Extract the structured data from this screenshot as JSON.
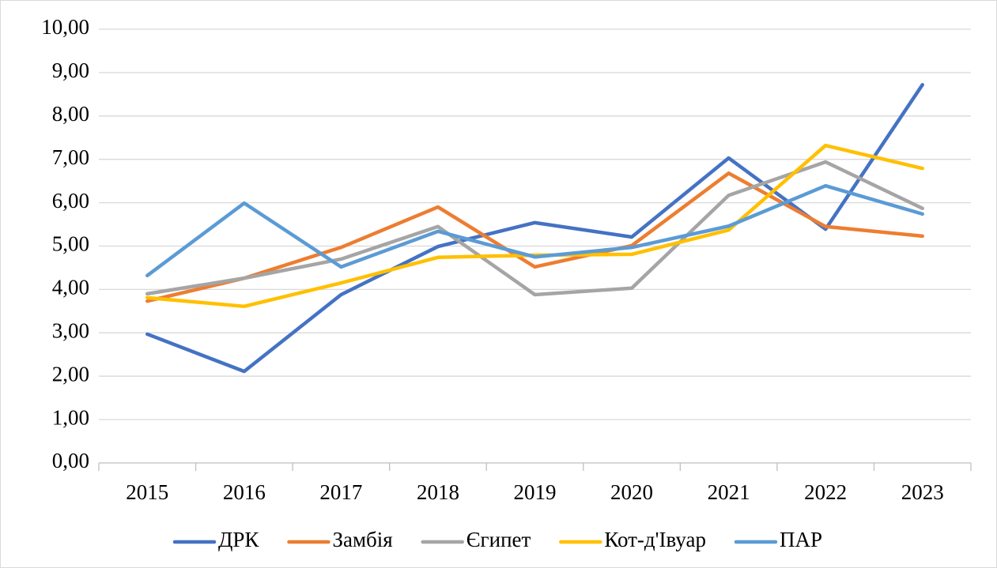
{
  "chart_data": {
    "type": "line",
    "categories": [
      "2015",
      "2016",
      "2017",
      "2018",
      "2019",
      "2020",
      "2021",
      "2022",
      "2023"
    ],
    "series": [
      {
        "name": "ДРК",
        "color": "#4472c4",
        "values": [
          2.97,
          2.11,
          3.88,
          4.99,
          5.54,
          5.21,
          7.03,
          5.39,
          8.72
        ]
      },
      {
        "name": "Замбія",
        "color": "#ed7d31",
        "values": [
          3.73,
          4.26,
          4.97,
          5.9,
          4.52,
          5.01,
          6.68,
          5.45,
          5.23
        ]
      },
      {
        "name": "Єгипет",
        "color": "#a5a5a5",
        "values": [
          3.9,
          4.26,
          4.7,
          5.45,
          3.88,
          4.03,
          6.17,
          6.94,
          5.87
        ]
      },
      {
        "name": "Кот-д'Івуар",
        "color": "#ffc000",
        "values": [
          3.81,
          3.61,
          4.15,
          4.74,
          4.79,
          4.81,
          5.37,
          7.32,
          6.79
        ]
      },
      {
        "name": "ПАР",
        "color": "#5b9bd5",
        "values": [
          4.32,
          5.99,
          4.52,
          5.34,
          4.75,
          4.97,
          5.46,
          6.39,
          5.74
        ]
      }
    ],
    "ylim": [
      0,
      10
    ],
    "yticks": [
      {
        "value": 0,
        "label": "0,00"
      },
      {
        "value": 1,
        "label": "1,00"
      },
      {
        "value": 2,
        "label": "2,00"
      },
      {
        "value": 3,
        "label": "3,00"
      },
      {
        "value": 4,
        "label": "4,00"
      },
      {
        "value": 5,
        "label": "5,00"
      },
      {
        "value": 6,
        "label": "6,00"
      },
      {
        "value": 7,
        "label": "7,00"
      },
      {
        "value": 8,
        "label": "8,00"
      },
      {
        "value": 9,
        "label": "9,00"
      },
      {
        "value": 10,
        "label": "10,00"
      }
    ],
    "grid": true,
    "legend": "bottom"
  }
}
